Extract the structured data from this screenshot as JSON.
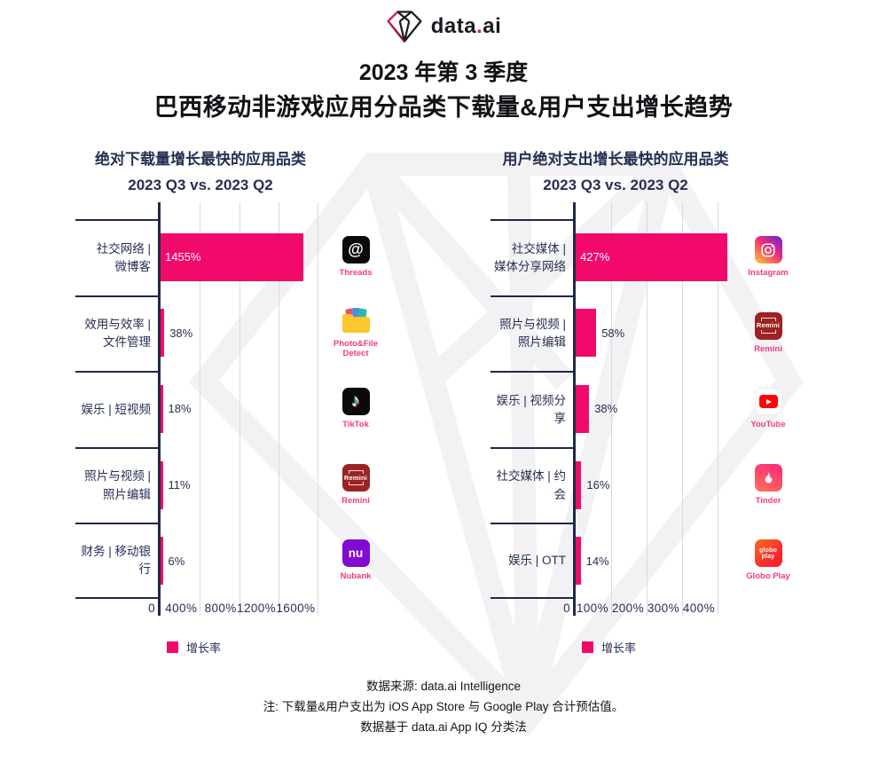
{
  "logo": {
    "part1": "data",
    "dot": ".",
    "part2": "ai"
  },
  "title": {
    "line1": "2023 年第 3 季度",
    "line2": "巴西移动非游戏应用分品类下载量&用户支出增长趋势"
  },
  "chart_data": [
    {
      "type": "bar",
      "orientation": "horizontal",
      "title": "绝对下载量增长最快的应用品类",
      "subtitle": "2023 Q3 vs. 2023 Q2",
      "legend": "增长率",
      "bar_color": "#F20A6A",
      "xlim": [
        0,
        1640
      ],
      "tick_values": [
        0,
        400,
        800,
        1200,
        1600
      ],
      "ticks": [
        "0",
        "400%",
        "800%",
        "1200%",
        "1600%"
      ],
      "categories": [
        "社交网络 |\n微博客",
        "效用与效率 |\n文件管理",
        "娱乐 | 短视频",
        "照片与视频 |\n照片编辑",
        "财务 | 移动银行"
      ],
      "values": [
        1455,
        38,
        18,
        11,
        6
      ],
      "labels": [
        "1455%",
        "38%",
        "18%",
        "11%",
        "6%"
      ],
      "apps": [
        {
          "label": "Threads"
        },
        {
          "label": "Photo&File Detect"
        },
        {
          "label": "TikTok"
        },
        {
          "label": "Remini",
          "icon_text": "Remini"
        },
        {
          "label": "Nubank",
          "icon_text": "nu"
        }
      ]
    },
    {
      "type": "bar",
      "orientation": "horizontal",
      "title": "用户绝对支出增长最快的应用品类",
      "subtitle": "2023 Q3 vs. 2023 Q2",
      "legend": "增长率",
      "bar_color": "#F20A6A",
      "xlim": [
        0,
        460
      ],
      "tick_values": [
        0,
        100,
        200,
        300,
        400
      ],
      "ticks": [
        "0",
        "100%",
        "200%",
        "300%",
        "400%"
      ],
      "categories": [
        "社交媒体 |\n媒体分享网络",
        "照片与视频 |\n照片编辑",
        "娱乐 | 视频分享",
        "社交媒体 | 约会",
        "娱乐 | OTT"
      ],
      "values": [
        427,
        58,
        38,
        16,
        14
      ],
      "labels": [
        "427%",
        "58%",
        "38%",
        "16%",
        "14%"
      ],
      "apps": [
        {
          "label": "Instagram"
        },
        {
          "label": "Remini",
          "icon_text": "Remini"
        },
        {
          "label": "YouTube"
        },
        {
          "label": "Tinder"
        },
        {
          "label": "Globo Play",
          "icon_text_1": "globo",
          "icon_text_2": "play"
        }
      ]
    }
  ],
  "footer": {
    "line1": "数据来源: data.ai Intelligence",
    "line2": "注: 下载量&用户支出为 iOS App Store 与 Google Play 合计预估值。",
    "line3": "数据基于 data.ai App IQ 分类法"
  },
  "colors": {
    "accent_pink": "#F20A6A",
    "navy": "#262F52",
    "gridline": "#D9DAE0",
    "watermark": "#F2F2F4"
  }
}
